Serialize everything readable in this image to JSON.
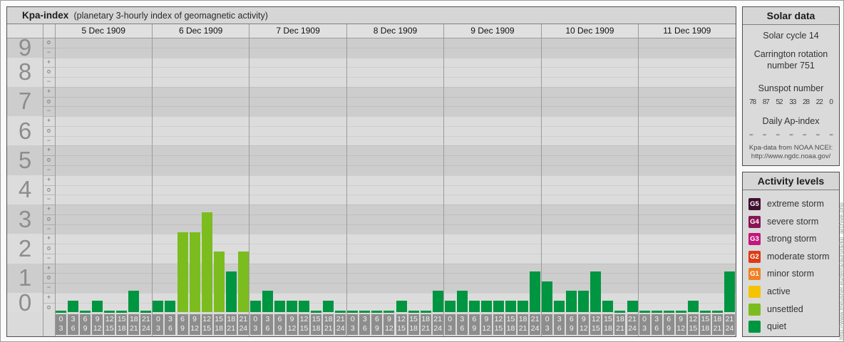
{
  "main": {
    "title": "Kpa-index",
    "subtitle": "(planetary 3-hourly index of geomagnetic activity)"
  },
  "chart_data": {
    "type": "bar",
    "title": "Kpa-index (planetary 3-hourly index of geomagnetic activity)",
    "y_axis_labels": [
      "9",
      "8",
      "7",
      "6",
      "5",
      "4",
      "3",
      "2",
      "1",
      "0"
    ],
    "y_sub_ticks": [
      "+",
      "o",
      "-"
    ],
    "ylim": [
      0,
      9.33
    ],
    "hour_labels": [
      [
        "0",
        "3"
      ],
      [
        "3",
        "6"
      ],
      [
        "6",
        "9"
      ],
      [
        "9",
        "12"
      ],
      [
        "12",
        "15"
      ],
      [
        "15",
        "18"
      ],
      [
        "18",
        "21"
      ],
      [
        "21",
        "24"
      ]
    ],
    "days": [
      {
        "date": "5 Dec 1909",
        "values": [
          "0o",
          "0+",
          "0o",
          "0+",
          "0o",
          "0o",
          "1-",
          "0o"
        ]
      },
      {
        "date": "6 Dec 1909",
        "values": [
          "0+",
          "0+",
          "3-",
          "3-",
          "3+",
          "2o",
          "1+",
          "2o"
        ]
      },
      {
        "date": "7 Dec 1909",
        "values": [
          "0+",
          "1-",
          "0+",
          "0+",
          "0+",
          "0o",
          "0+",
          "0o"
        ]
      },
      {
        "date": "8 Dec 1909",
        "values": [
          "0o",
          "0o",
          "0o",
          "0o",
          "0+",
          "0o",
          "0o",
          "1-"
        ]
      },
      {
        "date": "9 Dec 1909",
        "values": [
          "0+",
          "1-",
          "0+",
          "0+",
          "0+",
          "0+",
          "0+",
          "1+"
        ]
      },
      {
        "date": "10 Dec 1909",
        "values": [
          "1o",
          "0+",
          "1-",
          "1-",
          "1+",
          "0+",
          "0o",
          "0+"
        ]
      },
      {
        "date": "11 Dec 1909",
        "values": [
          "0o",
          "0o",
          "0o",
          "0o",
          "0+",
          "0o",
          "0o",
          "1+"
        ]
      }
    ],
    "colors": {
      "quiet": "#009540",
      "unsettled": "#7bbd1f"
    },
    "color_rule": "bars with Kp >= 2- are colored unsettled, lower values quiet"
  },
  "solar_data": {
    "title": "Solar data",
    "solar_cycle": "Solar cycle 14",
    "carrington_line1": "Carrington rotation",
    "carrington_line2": "number 751",
    "sunspot_heading": "Sunspot number",
    "sunspot_values": [
      "78",
      "87",
      "52",
      "33",
      "28",
      "22",
      "0"
    ],
    "ap_heading": "Daily Ap-index",
    "ap_values": [
      "--",
      "--",
      "--",
      "--",
      "--",
      "--",
      "--"
    ],
    "source_line1": "Kpa-data from NOAA NCEI:",
    "source_line2": "http://www.ngdc.noaa.gov/"
  },
  "activity_levels": {
    "title": "Activity levels",
    "items": [
      {
        "badge": "G5",
        "color": "#411031",
        "label": "extreme storm"
      },
      {
        "badge": "G4",
        "color": "#8a1555",
        "label": "severe storm"
      },
      {
        "badge": "G3",
        "color": "#c2177d",
        "label": "strong storm"
      },
      {
        "badge": "G2",
        "color": "#dc3c15",
        "label": "moderate storm"
      },
      {
        "badge": "G1",
        "color": "#ee8122",
        "label": "minor storm"
      },
      {
        "badge": "",
        "color": "#f4c400",
        "label": "active"
      },
      {
        "badge": "",
        "color": "#7bbd1f",
        "label": "unsettled"
      },
      {
        "badge": "",
        "color": "#009540",
        "label": "quiet"
      }
    ]
  },
  "watermark": "http://www.theusner.eu/terra/aurora/kp_archive.php"
}
